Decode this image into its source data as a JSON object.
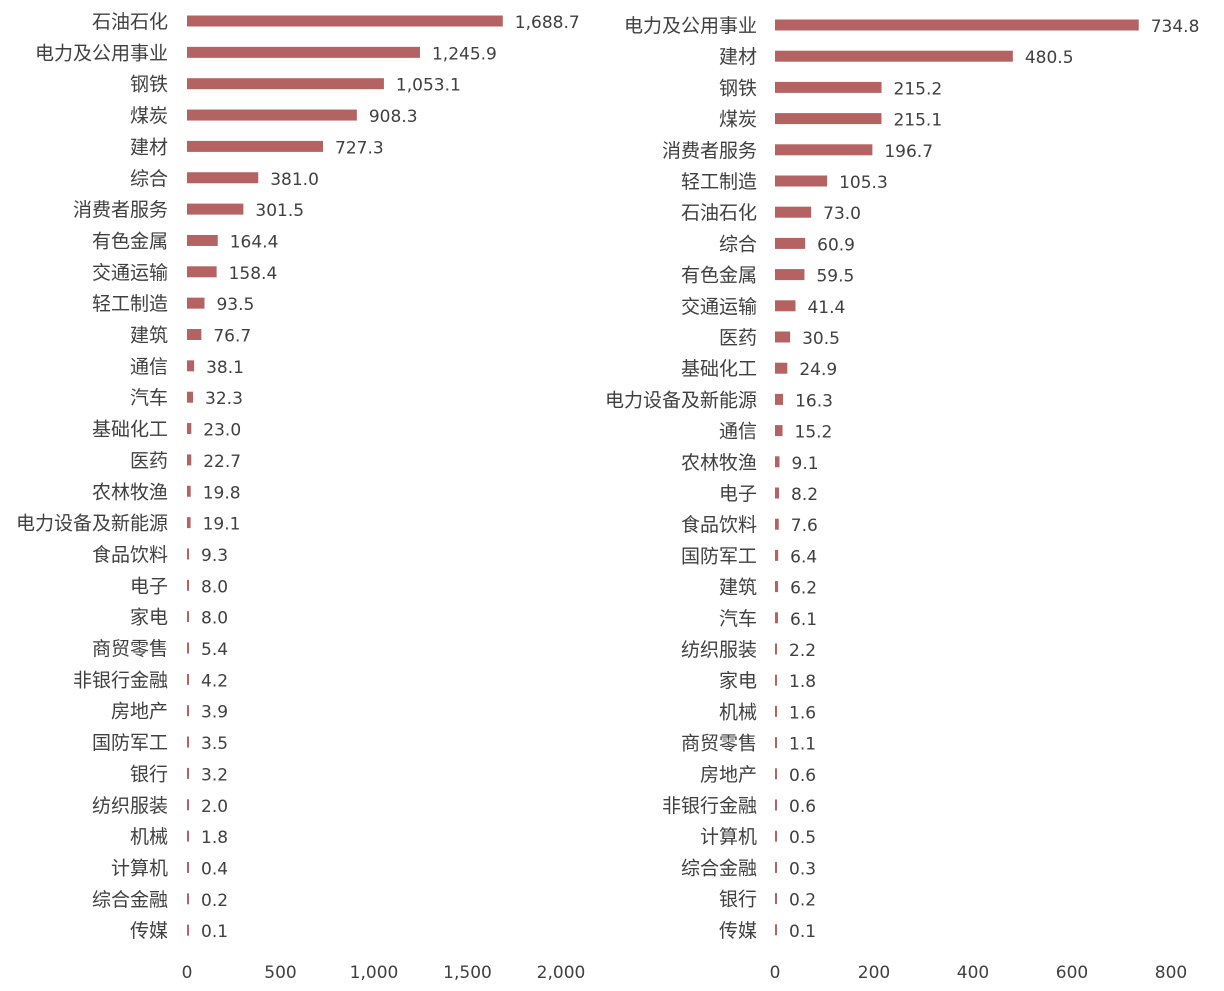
{
  "chart_data": [
    {
      "type": "bar",
      "orientation": "horizontal",
      "categories": [
        "石油石化",
        "电力及公用事业",
        "钢铁",
        "煤炭",
        "建材",
        "综合",
        "消费者服务",
        "有色金属",
        "交通运输",
        "轻工制造",
        "建筑",
        "通信",
        "汽车",
        "基础化工",
        "医药",
        "农林牧渔",
        "电力设备及新能源",
        "食品饮料",
        "电子",
        "家电",
        "商贸零售",
        "非银行金融",
        "房地产",
        "国防军工",
        "银行",
        "纺织服装",
        "机械",
        "计算机",
        "综合金融",
        "传媒"
      ],
      "values": [
        1688.7,
        1245.9,
        1053.1,
        908.3,
        727.3,
        381.0,
        301.5,
        164.4,
        158.4,
        93.5,
        76.7,
        38.1,
        32.3,
        23.0,
        22.7,
        19.8,
        19.1,
        9.3,
        8.0,
        8.0,
        5.4,
        4.2,
        3.9,
        3.5,
        3.2,
        2.0,
        1.8,
        0.4,
        0.2,
        0.1
      ],
      "value_labels": [
        "1,688.7",
        "1,245.9",
        "1,053.1",
        "908.3",
        "727.3",
        "381.0",
        "301.5",
        "164.4",
        "158.4",
        "93.5",
        "76.7",
        "38.1",
        "32.3",
        "23.0",
        "22.7",
        "19.8",
        "19.1",
        "9.3",
        "8.0",
        "8.0",
        "5.4",
        "4.2",
        "3.9",
        "3.5",
        "3.2",
        "2.0",
        "1.8",
        "0.4",
        "0.2",
        "0.1"
      ],
      "xlim": [
        0,
        2000
      ],
      "ticks": [
        0,
        500,
        1000,
        1500,
        2000
      ],
      "tick_labels": [
        "0",
        "500",
        "1,000",
        "1,500",
        "2,000"
      ],
      "grid": false,
      "color": "#b56262"
    },
    {
      "type": "bar",
      "orientation": "horizontal",
      "categories": [
        "电力及公用事业",
        "建材",
        "钢铁",
        "煤炭",
        "消费者服务",
        "轻工制造",
        "石油石化",
        "综合",
        "有色金属",
        "交通运输",
        "医药",
        "基础化工",
        "电力设备及新能源",
        "通信",
        "农林牧渔",
        "电子",
        "食品饮料",
        "国防军工",
        "建筑",
        "汽车",
        "纺织服装",
        "家电",
        "机械",
        "商贸零售",
        "房地产",
        "非银行金融",
        "计算机",
        "综合金融",
        "银行",
        "传媒"
      ],
      "values": [
        734.8,
        480.5,
        215.2,
        215.1,
        196.7,
        105.3,
        73.0,
        60.9,
        59.5,
        41.4,
        30.5,
        24.9,
        16.3,
        15.2,
        9.1,
        8.2,
        7.6,
        6.4,
        6.2,
        6.1,
        2.2,
        1.8,
        1.6,
        1.1,
        0.6,
        0.6,
        0.5,
        0.3,
        0.2,
        0.1
      ],
      "value_labels": [
        "734.8",
        "480.5",
        "215.2",
        "215.1",
        "196.7",
        "105.3",
        "73.0",
        "60.9",
        "59.5",
        "41.4",
        "30.5",
        "24.9",
        "16.3",
        "15.2",
        "9.1",
        "8.2",
        "7.6",
        "6.4",
        "6.2",
        "6.1",
        "2.2",
        "1.8",
        "1.6",
        "1.1",
        "0.6",
        "0.6",
        "0.5",
        "0.3",
        "0.2",
        "0.1"
      ],
      "xlim": [
        0,
        800
      ],
      "ticks": [
        0,
        200,
        400,
        600,
        800
      ],
      "tick_labels": [
        "0",
        "200",
        "400",
        "600",
        "800"
      ],
      "grid": false,
      "color": "#b56262"
    }
  ]
}
